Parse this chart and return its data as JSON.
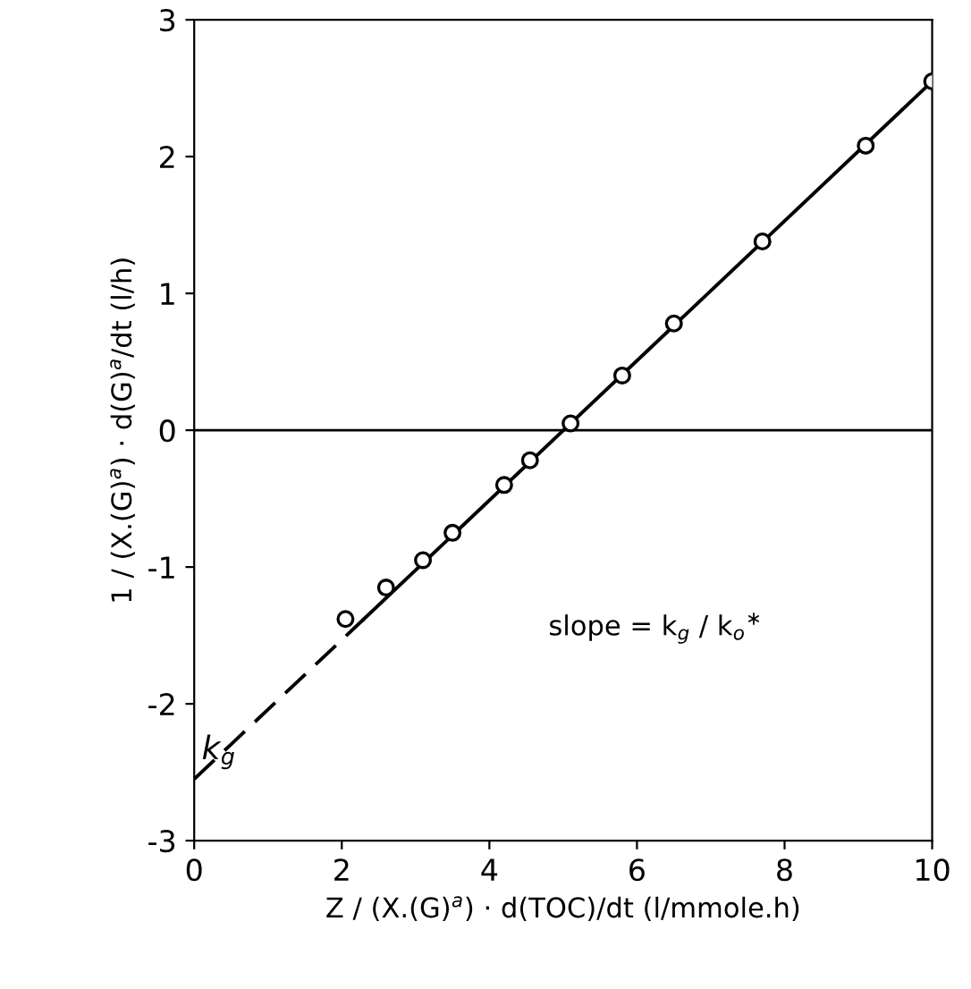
{
  "chart_data": {
    "type": "scatter",
    "xlabel": "Z / (X.(G)$^{a}$) · d(TOC)/dt (l/mmole.h)",
    "ylabel": "1 / (X.(G)$^{a}$) · d(G)$^{a}$/dt (l/h)",
    "xlim": [
      0,
      10
    ],
    "ylim": [
      -3,
      3
    ],
    "xticks": [
      0,
      2,
      4,
      6,
      8,
      10
    ],
    "yticks": [
      -3,
      -2,
      -1,
      0,
      1,
      2,
      3
    ],
    "grid": false,
    "legend": false,
    "series": [
      {
        "type": "scatter",
        "color": "#000000",
        "marker": "circle",
        "x": [
          2.05,
          2.6,
          3.1,
          3.5,
          4.2,
          4.55,
          5.1,
          5.8,
          6.5,
          7.7,
          9.1,
          10.0
        ],
        "values": [
          -1.38,
          -1.15,
          -0.95,
          -0.75,
          -0.4,
          -0.22,
          0.05,
          0.4,
          0.78,
          1.38,
          2.08,
          2.55
        ]
      },
      {
        "type": "line",
        "color": "#000000",
        "line_style": "dashed",
        "x": [
          0,
          2.3
        ],
        "values": [
          -2.55,
          -1.38
        ]
      },
      {
        "type": "line",
        "color": "#000000",
        "line_style": "solid",
        "x": [
          2.3,
          10
        ],
        "values": [
          -1.38,
          2.55
        ]
      }
    ],
    "ref_lines": [
      {
        "axis": "y",
        "value": 0,
        "color": "#000000",
        "line_style": "solid"
      }
    ],
    "annotations": [
      {
        "text": "k$_{g}$",
        "x": 0,
        "y": -2.55
      },
      "slope = k$_{g}$ / k$_{o}$$^{∗}$"
    ]
  }
}
